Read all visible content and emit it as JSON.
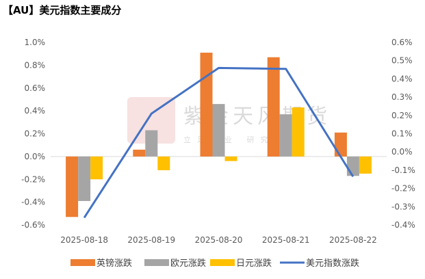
{
  "chart_data": {
    "type": "bar",
    "title": "【AU】美元指数主要成分",
    "categories": [
      "2025-08-18",
      "2025-08-19",
      "2025-08-20",
      "2025-08-21",
      "2025-08-22"
    ],
    "series": [
      {
        "name": "英镑涨跌",
        "axis": "left",
        "type": "bar",
        "color": "#ED7D31",
        "values": [
          -0.53,
          0.06,
          0.91,
          0.87,
          0.21
        ]
      },
      {
        "name": "欧元涨跌",
        "axis": "left",
        "type": "bar",
        "color": "#A5A5A5",
        "values": [
          -0.39,
          0.23,
          0.46,
          0.37,
          -0.17
        ]
      },
      {
        "name": "日元涨跌",
        "axis": "left",
        "type": "bar",
        "color": "#FFC000",
        "values": [
          -0.2,
          -0.12,
          -0.04,
          0.43,
          -0.15
        ]
      },
      {
        "name": "美元指数涨跌",
        "axis": "right",
        "type": "line",
        "color": "#4472C4",
        "values": [
          -0.36,
          0.21,
          0.46,
          0.455,
          -0.135
        ]
      }
    ],
    "left_axis": {
      "min": -0.6,
      "max": 1.0,
      "step": 0.2,
      "ticks": [
        "-0.6%",
        "-0.4%",
        "-0.2%",
        "0.0%",
        "0.2%",
        "0.4%",
        "0.6%",
        "0.8%",
        "1.0%"
      ]
    },
    "right_axis": {
      "min": -0.4,
      "max": 0.6,
      "step": 0.1,
      "ticks": [
        "-0.4%",
        "-0.3%",
        "-0.2%",
        "-0.1%",
        "0.0%",
        "0.1%",
        "0.2%",
        "0.3%",
        "0.4%",
        "0.5%",
        "0.6%"
      ]
    },
    "grid": false,
    "legend_position": "bottom"
  },
  "watermark": {
    "name": "紫金天风期货",
    "slogan": "立足产业 研究驱动",
    "seal": "紫金"
  }
}
